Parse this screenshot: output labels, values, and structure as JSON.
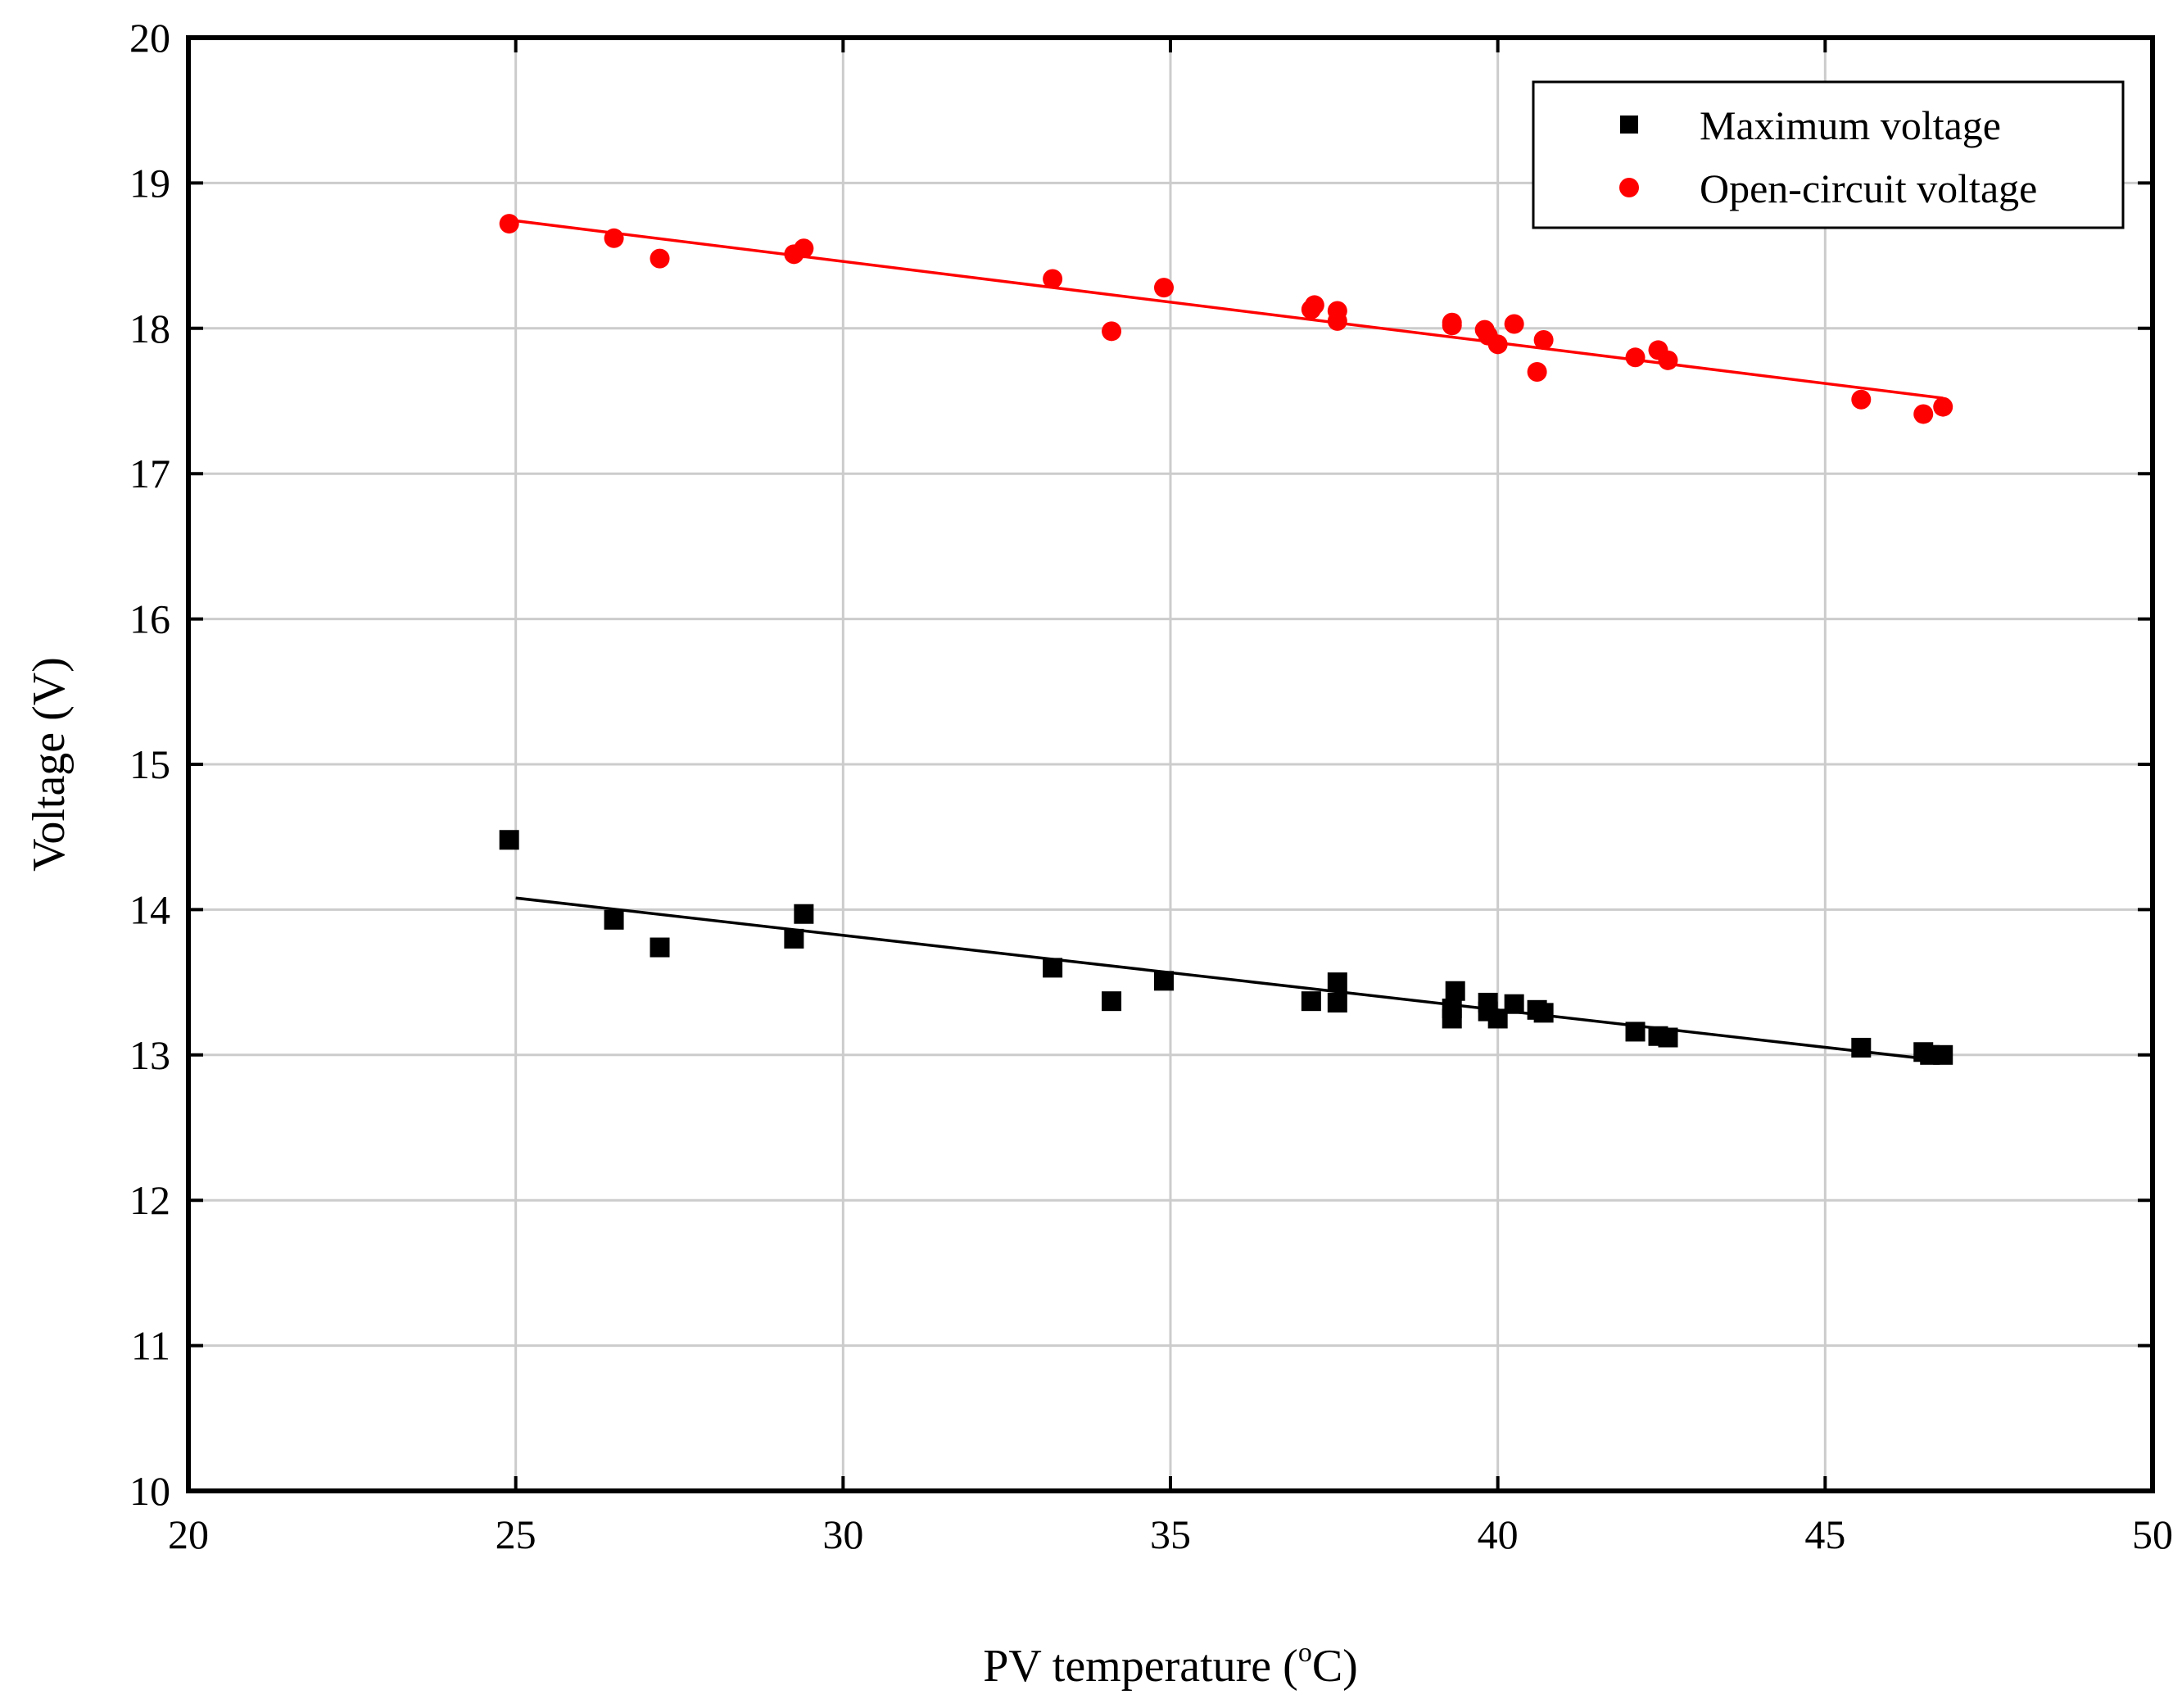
{
  "chart_data": {
    "type": "scatter",
    "title": "",
    "xlabel": "PV temperature (",
    "xlabel_sup": "o",
    "xlabel_unit": "C)",
    "ylabel": "Voltage (V)",
    "xlim": [
      20,
      50
    ],
    "ylim": [
      10,
      20
    ],
    "xticks": [
      "20",
      "25",
      "30",
      "35",
      "40",
      "45",
      "50"
    ],
    "yticks": [
      "10",
      "11",
      "12",
      "13",
      "14",
      "15",
      "16",
      "17",
      "18",
      "19",
      "20"
    ],
    "grid": true,
    "legend_position": "top-right",
    "series": [
      {
        "name": "Maximum voltage",
        "marker": "square",
        "color": "#000000",
        "x": [
          24.9,
          26.5,
          27.2,
          29.25,
          29.4,
          33.2,
          34.1,
          34.9,
          37.15,
          37.55,
          37.55,
          39.3,
          39.3,
          39.35,
          39.85,
          39.85,
          40.0,
          40.25,
          40.6,
          40.7,
          42.1,
          42.45,
          42.6,
          45.55,
          46.5,
          46.6,
          46.8
        ],
        "y": [
          14.48,
          13.93,
          13.74,
          13.8,
          13.97,
          13.6,
          13.37,
          13.51,
          13.37,
          13.5,
          13.36,
          13.32,
          13.25,
          13.44,
          13.36,
          13.3,
          13.25,
          13.35,
          13.31,
          13.29,
          13.16,
          13.13,
          13.12,
          13.05,
          13.02,
          13.0,
          13.0
        ],
        "fit": {
          "x": [
            25,
            46.8
          ],
          "y": [
            14.08,
            12.96
          ]
        }
      },
      {
        "name": "Open-circuit voltage",
        "marker": "circle",
        "color": "#ff0000",
        "x": [
          24.9,
          26.5,
          27.2,
          29.25,
          29.4,
          33.2,
          34.1,
          34.9,
          37.15,
          37.2,
          37.55,
          37.55,
          39.3,
          39.3,
          39.8,
          39.85,
          40.0,
          40.25,
          40.6,
          40.7,
          42.1,
          42.45,
          42.6,
          45.55,
          46.5,
          46.8
        ],
        "y": [
          18.72,
          18.62,
          18.48,
          18.51,
          18.55,
          18.34,
          17.98,
          18.28,
          18.13,
          18.16,
          18.05,
          18.12,
          18.04,
          18.02,
          17.99,
          17.95,
          17.89,
          18.03,
          17.7,
          17.92,
          17.8,
          17.85,
          17.78,
          17.51,
          17.41,
          17.46
        ],
        "fit": {
          "x": [
            25,
            46.8
          ],
          "y": [
            18.74,
            17.52
          ]
        }
      }
    ]
  }
}
